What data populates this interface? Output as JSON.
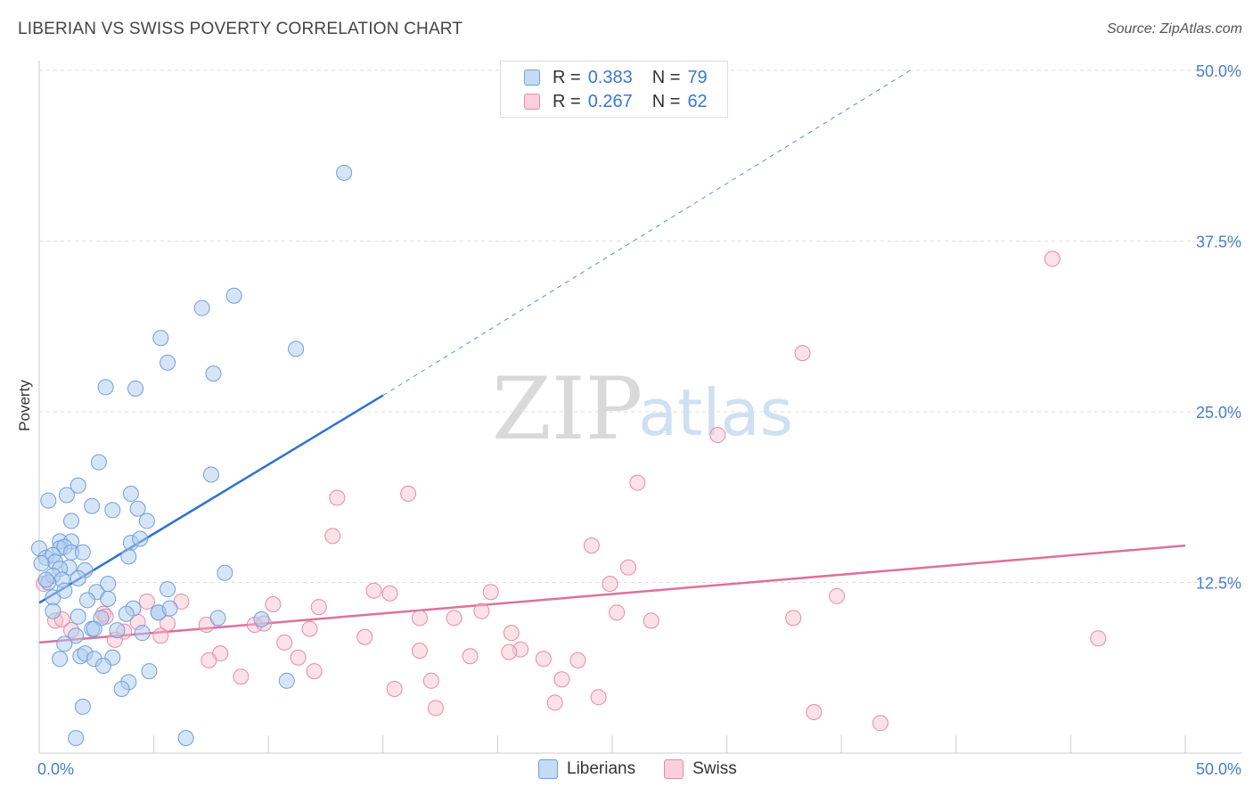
{
  "header": {
    "title": "LIBERIAN VS SWISS POVERTY CORRELATION CHART",
    "source": "Source: ZipAtlas.com"
  },
  "watermark": {
    "zip": "ZIP",
    "atlas": "atlas"
  },
  "legend": {
    "rows": [
      {
        "r_label": "R =",
        "r_value": "0.383",
        "n_label": "N =",
        "n_value": "79"
      },
      {
        "r_label": "R =",
        "r_value": "0.267",
        "n_label": "N =",
        "n_value": "62"
      }
    ]
  },
  "bottom_legend": [
    "Liberians",
    "Swiss"
  ],
  "colors": {
    "liberians_fill": "#aecbee",
    "liberians_stroke": "#6f9fdc",
    "liberians_line": "#2e72cf",
    "swiss_fill": "#f6bccb",
    "swiss_stroke": "#e88aa5",
    "swiss_line": "#e0709a",
    "grid": "#dddddd",
    "tick_label": "#4a7cc9"
  },
  "chart_data": {
    "type": "scatter",
    "title": "LIBERIAN VS SWISS POVERTY CORRELATION CHART",
    "xlabel": "",
    "ylabel": "Poverty",
    "xlim": [
      0,
      50
    ],
    "ylim": [
      0,
      50
    ],
    "x_tick_labels": [
      "0.0%",
      "50.0%"
    ],
    "y_ticks": [
      12.5,
      25.0,
      37.5,
      50.0
    ],
    "y_tick_labels": [
      "12.5%",
      "25.0%",
      "37.5%",
      "50.0%"
    ],
    "grid": true,
    "legend_position": "top-center",
    "series": [
      {
        "name": "Liberians",
        "r": 0.383,
        "n": 79,
        "trend": {
          "x0": 0,
          "y0": 11.0,
          "x1": 15.0,
          "y1": 26.2,
          "x_dash_end": 38.0,
          "y_dash_end": 50.0
        },
        "points": [
          [
            13.3,
            42.5
          ],
          [
            8.5,
            33.5
          ],
          [
            7.1,
            32.6
          ],
          [
            5.3,
            30.4
          ],
          [
            5.6,
            28.6
          ],
          [
            11.2,
            29.6
          ],
          [
            7.6,
            27.8
          ],
          [
            2.9,
            26.8
          ],
          [
            4.2,
            26.7
          ],
          [
            2.6,
            21.3
          ],
          [
            7.5,
            20.4
          ],
          [
            0.4,
            18.5
          ],
          [
            1.7,
            19.6
          ],
          [
            1.2,
            18.9
          ],
          [
            4.0,
            19.0
          ],
          [
            2.3,
            18.1
          ],
          [
            3.2,
            17.8
          ],
          [
            4.3,
            17.9
          ],
          [
            1.4,
            17.0
          ],
          [
            4.7,
            17.0
          ],
          [
            0.9,
            15.5
          ],
          [
            1.4,
            15.5
          ],
          [
            4.0,
            15.4
          ],
          [
            4.4,
            15.7
          ],
          [
            0.0,
            15.0
          ],
          [
            0.9,
            15.0
          ],
          [
            1.1,
            15.1
          ],
          [
            1.4,
            14.7
          ],
          [
            1.9,
            14.7
          ],
          [
            3.9,
            14.4
          ],
          [
            0.3,
            14.3
          ],
          [
            0.6,
            14.5
          ],
          [
            0.7,
            14.0
          ],
          [
            0.1,
            13.9
          ],
          [
            1.3,
            13.6
          ],
          [
            0.9,
            13.5
          ],
          [
            2.0,
            13.4
          ],
          [
            0.6,
            13.0
          ],
          [
            1.7,
            12.8
          ],
          [
            1.0,
            12.7
          ],
          [
            0.4,
            12.5
          ],
          [
            0.3,
            12.7
          ],
          [
            8.1,
            13.2
          ],
          [
            2.5,
            11.8
          ],
          [
            3.0,
            12.4
          ],
          [
            5.6,
            12.0
          ],
          [
            0.6,
            11.4
          ],
          [
            3.0,
            11.3
          ],
          [
            2.1,
            11.2
          ],
          [
            4.1,
            10.6
          ],
          [
            3.8,
            10.2
          ],
          [
            5.2,
            10.3
          ],
          [
            5.2,
            10.3
          ],
          [
            5.7,
            10.6
          ],
          [
            0.6,
            10.4
          ],
          [
            1.7,
            10.0
          ],
          [
            2.7,
            9.9
          ],
          [
            7.8,
            9.9
          ],
          [
            9.7,
            9.8
          ],
          [
            2.3,
            9.1
          ],
          [
            2.4,
            9.1
          ],
          [
            3.4,
            9.0
          ],
          [
            4.5,
            8.8
          ],
          [
            1.6,
            8.6
          ],
          [
            3.2,
            7.0
          ],
          [
            1.8,
            7.1
          ],
          [
            2.0,
            7.3
          ],
          [
            1.1,
            8.0
          ],
          [
            0.9,
            6.9
          ],
          [
            2.4,
            6.9
          ],
          [
            2.8,
            6.4
          ],
          [
            4.8,
            6.0
          ],
          [
            10.8,
            5.3
          ],
          [
            3.9,
            5.2
          ],
          [
            3.6,
            4.7
          ],
          [
            1.9,
            3.4
          ],
          [
            1.6,
            1.1
          ],
          [
            6.4,
            1.1
          ],
          [
            1.1,
            11.9
          ]
        ]
      },
      {
        "name": "Swiss",
        "r": 0.267,
        "n": 62,
        "trend": {
          "x0": 0,
          "y0": 8.1,
          "x1": 50.0,
          "y1": 15.2
        },
        "points": [
          [
            44.2,
            36.2
          ],
          [
            33.3,
            29.3
          ],
          [
            29.6,
            23.3
          ],
          [
            26.1,
            19.8
          ],
          [
            13.0,
            18.7
          ],
          [
            16.1,
            19.0
          ],
          [
            12.8,
            15.9
          ],
          [
            24.1,
            15.2
          ],
          [
            25.7,
            13.6
          ],
          [
            24.9,
            12.4
          ],
          [
            14.6,
            11.9
          ],
          [
            15.3,
            11.7
          ],
          [
            19.7,
            11.8
          ],
          [
            34.8,
            11.5
          ],
          [
            6.2,
            11.1
          ],
          [
            4.7,
            11.1
          ],
          [
            10.2,
            10.9
          ],
          [
            12.2,
            10.7
          ],
          [
            25.2,
            10.3
          ],
          [
            19.3,
            10.4
          ],
          [
            18.1,
            9.9
          ],
          [
            26.7,
            9.7
          ],
          [
            32.9,
            9.9
          ],
          [
            0.7,
            9.7
          ],
          [
            1.0,
            9.8
          ],
          [
            2.8,
            10.2
          ],
          [
            2.9,
            10.0
          ],
          [
            4.3,
            9.6
          ],
          [
            5.6,
            9.5
          ],
          [
            7.3,
            9.4
          ],
          [
            9.4,
            9.4
          ],
          [
            9.8,
            9.5
          ],
          [
            11.8,
            9.1
          ],
          [
            1.4,
            9.0
          ],
          [
            3.7,
            8.9
          ],
          [
            5.3,
            8.6
          ],
          [
            3.3,
            8.3
          ],
          [
            10.7,
            8.1
          ],
          [
            14.2,
            8.5
          ],
          [
            20.6,
            8.8
          ],
          [
            46.2,
            8.4
          ],
          [
            16.6,
            7.5
          ],
          [
            21.0,
            7.6
          ],
          [
            20.5,
            7.4
          ],
          [
            7.9,
            7.3
          ],
          [
            7.4,
            6.8
          ],
          [
            11.3,
            7.0
          ],
          [
            18.8,
            7.1
          ],
          [
            23.5,
            6.8
          ],
          [
            22.0,
            6.9
          ],
          [
            12.0,
            6.0
          ],
          [
            8.8,
            5.6
          ],
          [
            22.8,
            5.4
          ],
          [
            17.1,
            5.3
          ],
          [
            15.5,
            4.7
          ],
          [
            24.4,
            4.1
          ],
          [
            22.5,
            3.7
          ],
          [
            17.3,
            3.3
          ],
          [
            33.8,
            3.0
          ],
          [
            36.7,
            2.2
          ],
          [
            0.2,
            12.4
          ],
          [
            16.6,
            9.9
          ]
        ]
      }
    ]
  }
}
